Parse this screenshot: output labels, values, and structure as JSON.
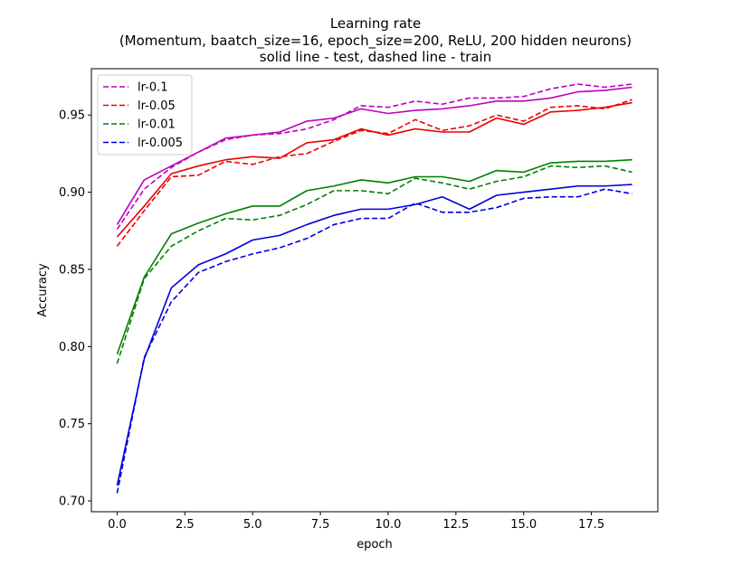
{
  "chart_data": {
    "type": "line",
    "title_lines": [
      "Learning rate",
      "(Momentum, baatch_size=16, epoch_size=200, ReLU, 200 hidden neurons)",
      "solid line - test, dashed line - train"
    ],
    "xlabel": "epoch",
    "ylabel": "Accuracy",
    "xlim": [
      -0.95,
      19.95
    ],
    "ylim": [
      0.693,
      0.98
    ],
    "xticks": [
      0.0,
      2.5,
      5.0,
      7.5,
      10.0,
      12.5,
      15.0,
      17.5
    ],
    "xtick_labels": [
      "0.0",
      "2.5",
      "5.0",
      "7.5",
      "10.0",
      "12.5",
      "15.0",
      "17.5"
    ],
    "yticks": [
      0.7,
      0.75,
      0.8,
      0.85,
      0.9,
      0.95
    ],
    "ytick_labels": [
      "0.70",
      "0.75",
      "0.80",
      "0.85",
      "0.90",
      "0.95"
    ],
    "grid": false,
    "legend_position": "upper-left",
    "legend_entries": [
      "lr-0.1",
      "lr-0.05",
      "lr-0.01",
      "lr-0.005"
    ],
    "x": [
      0,
      1,
      2,
      3,
      4,
      5,
      6,
      7,
      8,
      9,
      10,
      11,
      12,
      13,
      14,
      15,
      16,
      17,
      18,
      19
    ],
    "series": [
      {
        "name": "lr-0.1",
        "color": "#bf00bf",
        "test": [
          0.879,
          0.908,
          0.917,
          0.926,
          0.935,
          0.937,
          0.939,
          0.946,
          0.948,
          0.954,
          0.951,
          0.953,
          0.954,
          0.956,
          0.959,
          0.959,
          0.961,
          0.965,
          0.966,
          0.968
        ],
        "train": [
          0.876,
          0.902,
          0.916,
          0.926,
          0.934,
          0.937,
          0.938,
          0.941,
          0.947,
          0.956,
          0.955,
          0.959,
          0.957,
          0.961,
          0.961,
          0.962,
          0.967,
          0.97,
          0.968,
          0.97
        ]
      },
      {
        "name": "lr-0.05",
        "color": "#ee0000",
        "test": [
          0.871,
          0.891,
          0.912,
          0.917,
          0.921,
          0.923,
          0.922,
          0.932,
          0.934,
          0.941,
          0.937,
          0.941,
          0.939,
          0.939,
          0.948,
          0.944,
          0.952,
          0.953,
          0.955,
          0.958
        ],
        "train": [
          0.865,
          0.888,
          0.91,
          0.911,
          0.92,
          0.918,
          0.923,
          0.925,
          0.933,
          0.94,
          0.938,
          0.947,
          0.94,
          0.943,
          0.95,
          0.946,
          0.955,
          0.956,
          0.954,
          0.96
        ]
      },
      {
        "name": "lr-0.01",
        "color": "#008000",
        "test": [
          0.795,
          0.845,
          0.873,
          0.88,
          0.886,
          0.891,
          0.891,
          0.901,
          0.904,
          0.908,
          0.906,
          0.91,
          0.91,
          0.907,
          0.914,
          0.913,
          0.919,
          0.92,
          0.92,
          0.921
        ],
        "train": [
          0.789,
          0.844,
          0.865,
          0.875,
          0.883,
          0.882,
          0.885,
          0.892,
          0.901,
          0.901,
          0.899,
          0.909,
          0.906,
          0.902,
          0.907,
          0.91,
          0.917,
          0.916,
          0.917,
          0.913
        ]
      },
      {
        "name": "lr-0.005",
        "color": "#0000dd",
        "test": [
          0.71,
          0.792,
          0.838,
          0.853,
          0.86,
          0.869,
          0.872,
          0.879,
          0.885,
          0.889,
          0.889,
          0.892,
          0.897,
          0.889,
          0.898,
          0.9,
          0.902,
          0.904,
          0.904,
          0.905
        ],
        "train": [
          0.705,
          0.793,
          0.829,
          0.848,
          0.855,
          0.86,
          0.864,
          0.87,
          0.879,
          0.883,
          0.883,
          0.893,
          0.887,
          0.887,
          0.89,
          0.896,
          0.897,
          0.897,
          0.902,
          0.899
        ]
      }
    ]
  }
}
